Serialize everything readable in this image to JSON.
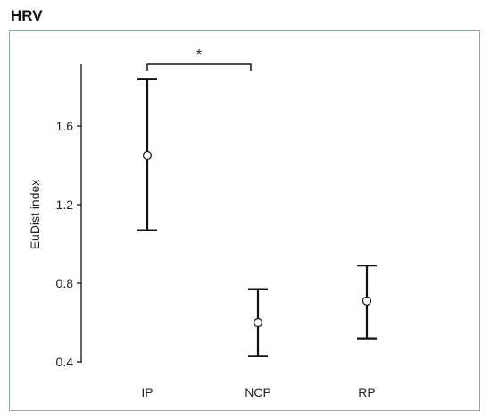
{
  "panel": {
    "title": "HRV"
  },
  "chart_data": {
    "type": "scatter",
    "title": "",
    "xlabel": "",
    "ylabel": "EuDist index",
    "categories": [
      "IP",
      "NCP",
      "RP"
    ],
    "mean": [
      1.45,
      0.6,
      0.71
    ],
    "upper": [
      1.84,
      0.77,
      0.89
    ],
    "lower": [
      1.07,
      0.43,
      0.52
    ],
    "yticks": [
      0.4,
      0.8,
      1.2,
      1.6
    ],
    "ytick_labels": [
      "0.4",
      "0.8",
      "1.2",
      "1.6"
    ],
    "ylim": [
      0.4,
      1.84
    ],
    "grid": false,
    "legend": "none",
    "significance": {
      "from": "IP",
      "to": "NCP",
      "label": "*"
    },
    "colors": {
      "marker_fill": "#ffffff",
      "stroke": "#111111",
      "frame": "#8fa9a4"
    }
  }
}
